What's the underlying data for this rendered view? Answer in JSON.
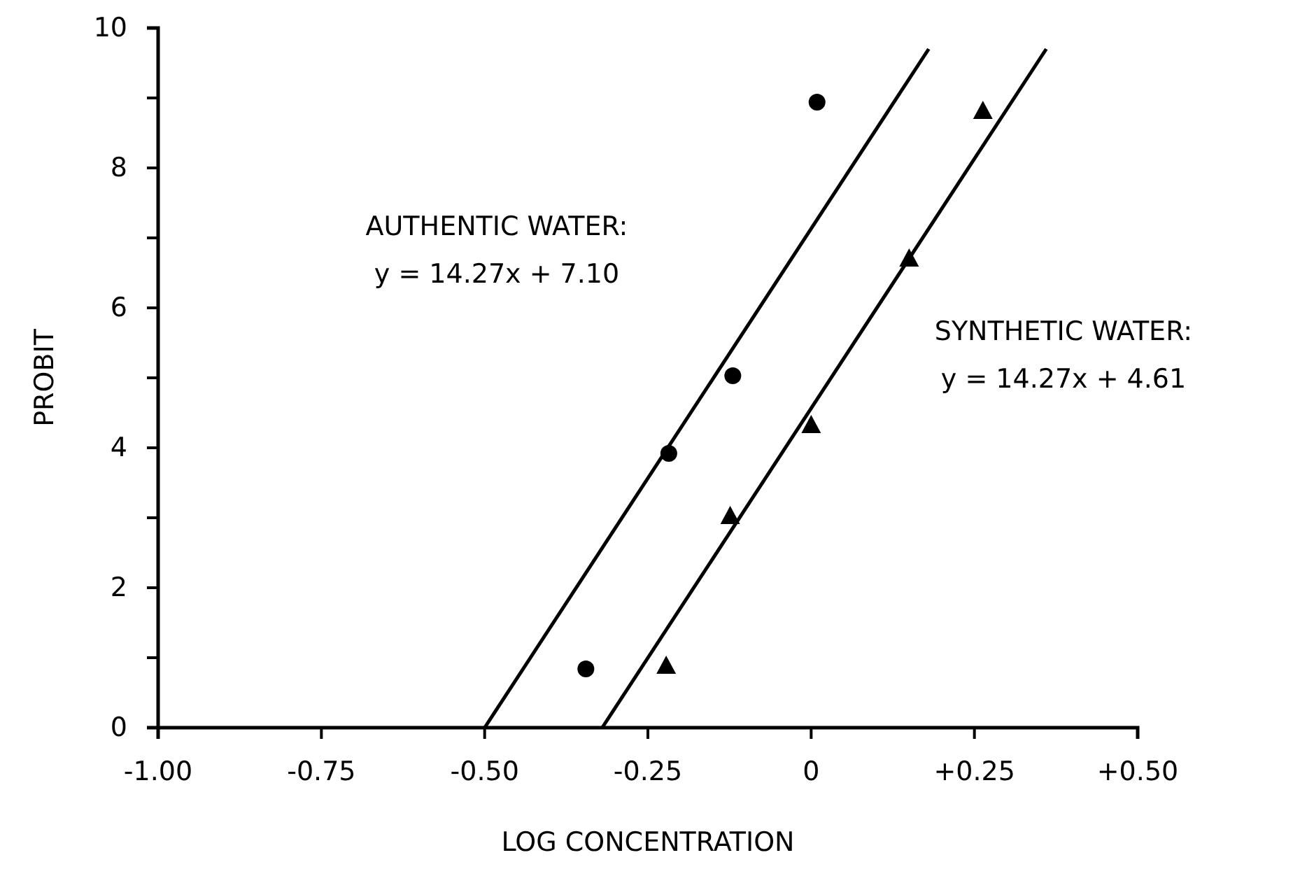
{
  "chart_data": {
    "type": "scatter",
    "xlabel": "LOG CONCENTRATION",
    "ylabel": "PROBIT",
    "xlim": [
      -1.0,
      0.5
    ],
    "ylim": [
      0,
      10
    ],
    "xticks": [
      {
        "value": -1,
        "label": "-1.00"
      },
      {
        "value": -0.75,
        "label": "-0.75"
      },
      {
        "value": -0.5,
        "label": "-0.50"
      },
      {
        "value": -0.25,
        "label": "-0.25"
      },
      0,
      {
        "value": 0.25,
        "label": "+0.25"
      },
      {
        "value": 0.5,
        "label": "+0.50"
      }
    ],
    "yticks": [
      0,
      {
        "value": 1,
        "label": null
      },
      2,
      {
        "value": 3,
        "label": null
      },
      4,
      {
        "value": 5,
        "label": null
      },
      6,
      {
        "value": 7,
        "label": null
      },
      8,
      {
        "value": 9,
        "label": null
      },
      10
    ],
    "grid": false,
    "line_style": "solid",
    "series": [
      {
        "marker": "circle",
        "color": "#000000",
        "x": [
          -0.345,
          -0.218,
          -0.12,
          0.009
        ],
        "values": [
          0.84,
          3.92,
          5.03,
          8.94
        ]
      },
      {
        "marker": "triangle",
        "color": "#000000",
        "x": [
          -0.222,
          -0.124,
          0.0,
          0.15,
          0.263
        ],
        "values": [
          0.89,
          3.03,
          4.33,
          6.71,
          8.82
        ]
      },
      {
        "type": "line",
        "marker": "none",
        "color": "#000000",
        "x": [
          -0.5,
          0.18
        ],
        "values": [
          0,
          9.7
        ]
      },
      {
        "type": "line",
        "marker": "none",
        "color": "#000000",
        "x": [
          -0.32,
          0.36
        ],
        "values": [
          0,
          9.7
        ]
      }
    ],
    "annotations": [
      "AUTHENTIC WATER:\ny = 14.27x + 7.10",
      "SYNTHETIC WATER:\ny = 14.27x + 4.61"
    ]
  }
}
